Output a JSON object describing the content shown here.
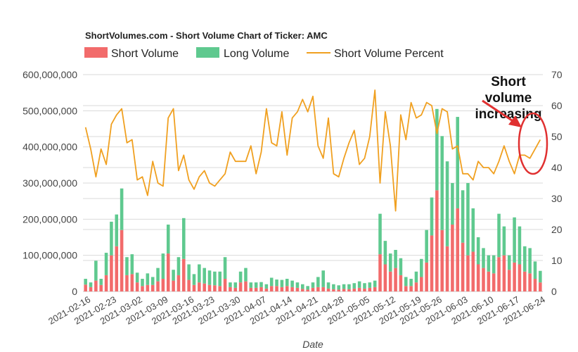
{
  "chart_data": {
    "type": "bar",
    "title": "ShortVolumes.com - Short Volume Chart of Ticker: AMC",
    "xlabel": "Date",
    "ylabel": "",
    "y2label": "",
    "ylim": [
      0,
      600000000
    ],
    "y2lim": [
      0,
      70
    ],
    "y_ticks": [
      "0",
      "100,000,000",
      "200,000,000",
      "300,000,000",
      "400,000,000",
      "500,000,000",
      "600,000,000"
    ],
    "y2_ticks": [
      "0",
      "10",
      "20",
      "30",
      "40",
      "50",
      "60",
      "70"
    ],
    "x_ticks": [
      "2021-02-16",
      "2021-02-23",
      "2021-03-02",
      "2021-03-09",
      "2021-03-16",
      "2021-03-23",
      "2021-03-30",
      "2021-04-07",
      "2021-04-14",
      "2021-04-21",
      "2021-04-28",
      "2021-05-05",
      "2021-05-12",
      "2021-05-19",
      "2021-05-26",
      "2021-06-03",
      "2021-06-10",
      "2021-06-17",
      "2021-06-24"
    ],
    "legend": "top-left",
    "grid": true,
    "stacked": true,
    "series": [
      {
        "name": "Short Volume",
        "kind": "bar",
        "color": "#f26b6b",
        "values": [
          19000000,
          12000000,
          30000000,
          18000000,
          45000000,
          100000000,
          125000000,
          170000000,
          45000000,
          48000000,
          25000000,
          15000000,
          18000000,
          18000000,
          28000000,
          35000000,
          105000000,
          30000000,
          45000000,
          90000000,
          32000000,
          18000000,
          25000000,
          22000000,
          18000000,
          17000000,
          15000000,
          35000000,
          12000000,
          10000000,
          25000000,
          28000000,
          10000000,
          10000000,
          12000000,
          8000000,
          15000000,
          15000000,
          12000000,
          15000000,
          12000000,
          10000000,
          7000000,
          5000000,
          10000000,
          12000000,
          12000000,
          8000000,
          6000000,
          5000000,
          7000000,
          6000000,
          8000000,
          10000000,
          8000000,
          10000000,
          12000000,
          103000000,
          75000000,
          55000000,
          65000000,
          45000000,
          15000000,
          15000000,
          25000000,
          40000000,
          80000000,
          155000000,
          280000000,
          170000000,
          125000000,
          185000000,
          230000000,
          135000000,
          100000000,
          110000000,
          75000000,
          65000000,
          55000000,
          50000000,
          95000000,
          100000000,
          60000000,
          80000000,
          75000000,
          55000000,
          50000000,
          35000000,
          25000000
        ]
      },
      {
        "name": "Long Volume",
        "kind": "bar",
        "color": "#5fc98f",
        "values": [
          16000000,
          13000000,
          55000000,
          17000000,
          62000000,
          93000000,
          88000000,
          115000000,
          50000000,
          55000000,
          27000000,
          20000000,
          32000000,
          22000000,
          37000000,
          70000000,
          80000000,
          30000000,
          50000000,
          113000000,
          43000000,
          30000000,
          50000000,
          43000000,
          40000000,
          38000000,
          40000000,
          60000000,
          13000000,
          15000000,
          30000000,
          37000000,
          15000000,
          15000000,
          14000000,
          12000000,
          23000000,
          18000000,
          20000000,
          20000000,
          18000000,
          15000000,
          13000000,
          10000000,
          15000000,
          28000000,
          46000000,
          17000000,
          14000000,
          12000000,
          13000000,
          14000000,
          15000000,
          18000000,
          15000000,
          15000000,
          18000000,
          112000000,
          65000000,
          50000000,
          50000000,
          47000000,
          25000000,
          20000000,
          30000000,
          50000000,
          90000000,
          105000000,
          225000000,
          260000000,
          235000000,
          115000000,
          253000000,
          145000000,
          200000000,
          120000000,
          75000000,
          55000000,
          45000000,
          50000000,
          120000000,
          80000000,
          40000000,
          125000000,
          105000000,
          70000000,
          70000000,
          48000000,
          32000000
        ]
      },
      {
        "name": "Short Volume Percent",
        "kind": "line",
        "axis": "right",
        "color": "#f0a020",
        "values": [
          53,
          46,
          37,
          46,
          41,
          54,
          57,
          59,
          48,
          49,
          36,
          37,
          31,
          42,
          35,
          34,
          56,
          59,
          39,
          44,
          36,
          33,
          37,
          39,
          35,
          34,
          36,
          38,
          45,
          42,
          42,
          42,
          47,
          38,
          45,
          59,
          48,
          47,
          58,
          44,
          56,
          58,
          62,
          58,
          63,
          47,
          43,
          56,
          38,
          37,
          43,
          48,
          52,
          41,
          43,
          50,
          65,
          35,
          58,
          47,
          26,
          57,
          49,
          61,
          56,
          57,
          61,
          60,
          51,
          59,
          58,
          46,
          47,
          38,
          38,
          36,
          42,
          40,
          40,
          38,
          42,
          47,
          42,
          38,
          44,
          44,
          43,
          46,
          49
        ]
      }
    ],
    "annotation": {
      "lines": [
        "Short",
        "volume",
        "increasing"
      ],
      "color": "#e03030"
    }
  }
}
